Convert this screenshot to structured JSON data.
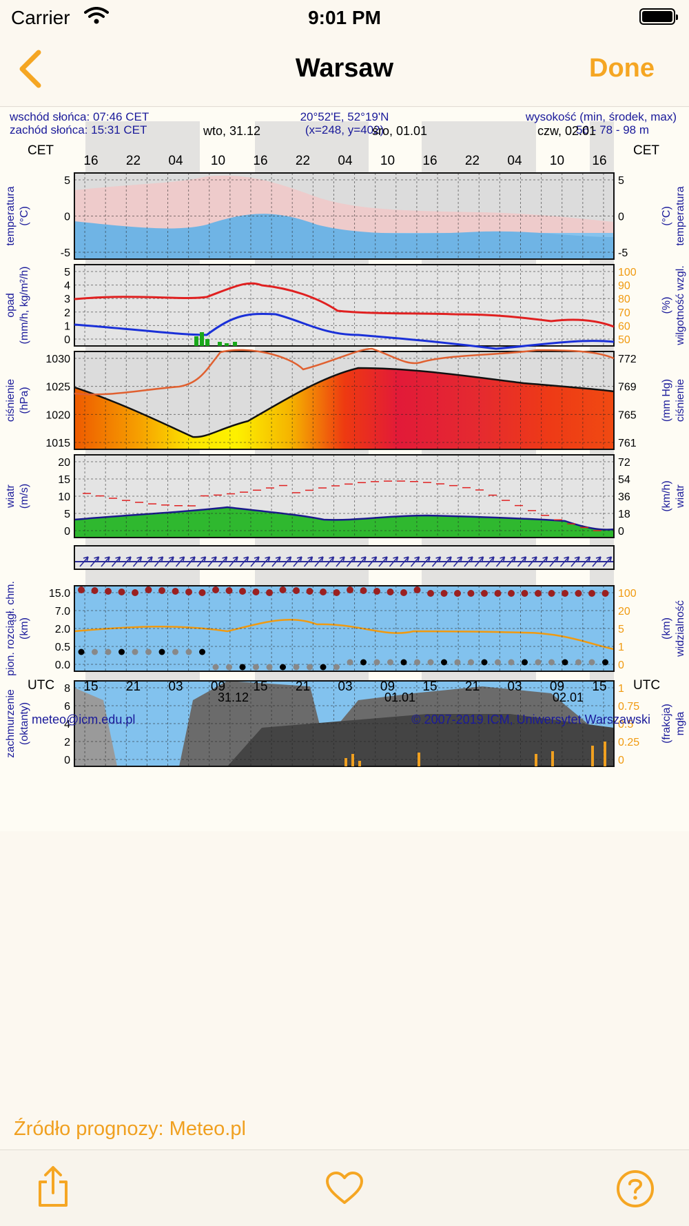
{
  "status": {
    "carrier": "Carrier",
    "time": "9:01 PM"
  },
  "nav": {
    "title": "Warsaw",
    "done": "Done"
  },
  "meteogram": {
    "sunrise": "wschód słońca: 07:46 CET",
    "sunset": "zachód słońca: 15:31 CET",
    "coords": "20°52'E, 52°19'N",
    "grid": "(x=248, y=402)",
    "elevation_label": "wysokość (min, środek, max)",
    "elevation_values": "56 - 78 - 98 m",
    "cet": "CET",
    "utc": "UTC",
    "day_top": [
      "wto, 31.12",
      "śro, 01.01",
      "czw, 02.01"
    ],
    "day_bottom": [
      "31.12",
      "01.01",
      "02.01"
    ],
    "cet_hours": [
      "16",
      "22",
      "04",
      "10",
      "16",
      "22",
      "04",
      "10",
      "16",
      "22",
      "04",
      "10",
      "16"
    ],
    "utc_hours": [
      "15",
      "21",
      "03",
      "09",
      "15",
      "21",
      "03",
      "09",
      "15",
      "21",
      "03",
      "09",
      "15"
    ],
    "panels": {
      "temperature": {
        "left": [
          "temperatura",
          "(°C)"
        ],
        "right": [
          "(°C)",
          "temperatura"
        ],
        "ticks": [
          "5",
          "0",
          "-5"
        ],
        "rticks": [
          "5",
          "0",
          "-5"
        ]
      },
      "precip": {
        "left": [
          "opad",
          "(mm/h, kg/m²/h)"
        ],
        "right": [
          "(%)",
          "wilgotność wzgl."
        ],
        "ticks": [
          "5",
          "4",
          "3",
          "2",
          "1",
          "0"
        ],
        "rticks": [
          "100",
          "90",
          "80",
          "70",
          "60",
          "50"
        ]
      },
      "pressure": {
        "left": [
          "ciśnienie",
          "(hPa)"
        ],
        "right": [
          "(mm Hg)",
          "ciśnienie"
        ],
        "ticks": [
          "1030",
          "1025",
          "1020",
          "1015"
        ],
        "rticks": [
          "772",
          "769",
          "765",
          "761"
        ]
      },
      "wind": {
        "left": [
          "wiatr",
          "(m/s)"
        ],
        "right": [
          "(km/h)",
          "wiatr"
        ],
        "ticks": [
          "20",
          "15",
          "10",
          "5",
          "0"
        ],
        "rticks": [
          "72",
          "54",
          "36",
          "18",
          "0"
        ]
      },
      "cloudbase": {
        "left": [
          "pion. rozciągł. chm.",
          "(km)"
        ],
        "right": [
          "(km)",
          "widzialność"
        ],
        "ticks": [
          "15.0",
          "7.0",
          "2.0",
          "0.5",
          "0.0"
        ],
        "rticks": [
          "100",
          "20",
          "5",
          "1",
          "0"
        ]
      },
      "clouds": {
        "left": [
          "zachmurzenie",
          "(oktanty)"
        ],
        "right": [
          "(frakcja)",
          "mgła"
        ],
        "ticks": [
          "8",
          "6",
          "4",
          "2",
          "0"
        ],
        "rticks": [
          "1",
          "0.75",
          "0.5",
          "0.25",
          "0"
        ]
      }
    },
    "email": "meteo@icm.edu.pl",
    "copyright": "© 2007-2019 ICM, Uniwersytet Warszawski"
  },
  "footer": {
    "source": "Źródło prognozy: Meteo.pl"
  },
  "colors": {
    "accent": "#f5a623",
    "chart_blue": "#2a2a99",
    "sky": "#7cc4f0"
  }
}
